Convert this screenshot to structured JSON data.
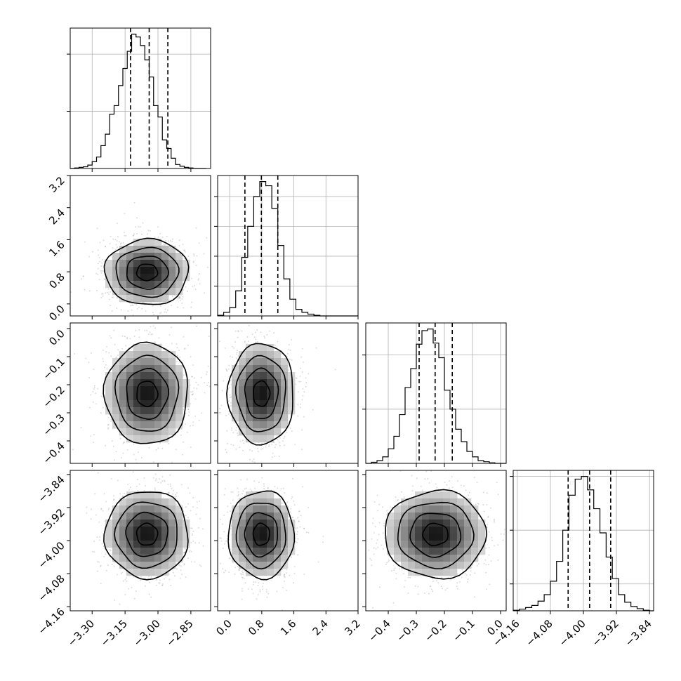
{
  "chart_data": {
    "type": "corner",
    "parameters": 4,
    "grid": true,
    "quantile_lines": "dashed",
    "axes": [
      {
        "range": [
          -3.4,
          -2.76
        ],
        "ticks": [
          -3.3,
          -3.15,
          -3.0,
          -2.85
        ],
        "tick_labels": [
          "−3.30",
          "−3.15",
          "−3.00",
          "−2.85"
        ]
      },
      {
        "range": [
          -0.3,
          3.2
        ],
        "ticks": [
          0.0,
          0.8,
          1.6,
          2.4,
          3.2
        ],
        "tick_labels": [
          "0.0",
          "0.8",
          "1.6",
          "2.4",
          "3.2"
        ]
      },
      {
        "range": [
          -0.48,
          0.02
        ],
        "ticks": [
          -0.4,
          -0.3,
          -0.2,
          -0.1,
          0.0
        ],
        "tick_labels": [
          "−0.4",
          "−0.3",
          "−0.2",
          "−0.1",
          "0.0"
        ]
      },
      {
        "range": [
          -4.17,
          -3.83
        ],
        "ticks": [
          -4.16,
          -4.08,
          -4.0,
          -3.92,
          -3.84
        ],
        "tick_labels": [
          "−4.16",
          "−4.08",
          "−4.00",
          "−3.92",
          "−3.84"
        ]
      }
    ],
    "marginals": [
      {
        "quantiles": [
          -3.125,
          -3.04,
          -2.955
        ],
        "bins": [
          -3.4,
          -3.38,
          -3.36,
          -3.34,
          -3.32,
          -3.3,
          -3.28,
          -3.26,
          -3.24,
          -3.22,
          -3.2,
          -3.18,
          -3.16,
          -3.14,
          -3.12,
          -3.1,
          -3.08,
          -3.06,
          -3.04,
          -3.02,
          -3.0,
          -2.98,
          -2.96,
          -2.94,
          -2.92,
          -2.9,
          -2.88,
          -2.86,
          -2.84,
          -2.82,
          -2.8,
          -2.78
        ],
        "counts": [
          0,
          1,
          2,
          3,
          6,
          12,
          20,
          40,
          60,
          95,
          110,
          145,
          175,
          205,
          235,
          230,
          215,
          190,
          160,
          110,
          90,
          50,
          35,
          18,
          7,
          4,
          2,
          1,
          0,
          0,
          0
        ],
        "yticks": [
          100,
          200
        ]
      },
      {
        "quantiles": [
          0.38,
          0.79,
          1.2
        ],
        "bins": [
          -0.3,
          -0.15,
          0.0,
          0.15,
          0.3,
          0.45,
          0.6,
          0.75,
          0.9,
          1.05,
          1.2,
          1.35,
          1.5,
          1.65,
          1.8,
          1.95,
          2.1,
          2.25,
          2.4,
          2.55,
          2.7,
          2.85,
          3.0,
          3.2
        ],
        "counts": [
          1,
          6,
          14,
          42,
          98,
          150,
          200,
          225,
          218,
          180,
          118,
          62,
          28,
          11,
          6,
          3,
          1,
          0,
          0,
          0,
          0,
          0,
          0
        ],
        "yticks": [
          50,
          100,
          150,
          200
        ]
      },
      {
        "quantiles": [
          -0.29,
          -0.233,
          -0.172
        ],
        "bins": [
          -0.48,
          -0.46,
          -0.44,
          -0.42,
          -0.4,
          -0.38,
          -0.36,
          -0.34,
          -0.32,
          -0.3,
          -0.28,
          -0.26,
          -0.24,
          -0.22,
          -0.2,
          -0.18,
          -0.16,
          -0.14,
          -0.12,
          -0.1,
          -0.08,
          -0.06,
          -0.04,
          -0.02,
          0.0,
          0.02
        ],
        "counts": [
          0,
          2,
          5,
          12,
          27,
          50,
          90,
          140,
          175,
          220,
          245,
          248,
          222,
          195,
          135,
          100,
          63,
          40,
          22,
          12,
          5,
          3,
          1,
          0,
          0
        ],
        "yticks": [
          100,
          200
        ]
      },
      {
        "quantiles": [
          -4.037,
          -3.985,
          -3.934
        ],
        "bins": [
          -4.17,
          -4.155,
          -4.14,
          -4.125,
          -4.11,
          -4.095,
          -4.08,
          -4.065,
          -4.05,
          -4.035,
          -4.02,
          -4.005,
          -3.99,
          -3.975,
          -3.96,
          -3.945,
          -3.93,
          -3.915,
          -3.9,
          -3.885,
          -3.87,
          -3.855,
          -3.84,
          -3.83
        ],
        "counts": [
          1,
          3,
          6,
          10,
          18,
          30,
          55,
          92,
          150,
          215,
          245,
          250,
          225,
          190,
          145,
          100,
          60,
          30,
          16,
          8,
          4,
          1,
          0
        ],
        "yticks": [
          50,
          150,
          250
        ]
      }
    ],
    "joint": [
      {
        "row": 1,
        "col": 0,
        "mean": [
          -3.05,
          0.79
        ],
        "sd": [
          0.095,
          0.41
        ],
        "rho": 0.0
      },
      {
        "row": 2,
        "col": 0,
        "mean": [
          -3.05,
          -0.232
        ],
        "sd": [
          0.095,
          0.09
        ],
        "rho": 0.0
      },
      {
        "row": 2,
        "col": 1,
        "mean": [
          0.79,
          -0.232
        ],
        "sd": [
          0.41,
          0.09
        ],
        "rho": 0.0
      },
      {
        "row": 3,
        "col": 0,
        "mean": [
          -3.05,
          -3.985
        ],
        "sd": [
          0.095,
          0.053
        ],
        "rho": 0.0
      },
      {
        "row": 3,
        "col": 1,
        "mean": [
          0.79,
          -3.985
        ],
        "sd": [
          0.41,
          0.053
        ],
        "rho": 0.0
      },
      {
        "row": 3,
        "col": 2,
        "mean": [
          -0.232,
          -3.985
        ],
        "sd": [
          0.09,
          0.053
        ],
        "rho": 0.0
      }
    ]
  }
}
